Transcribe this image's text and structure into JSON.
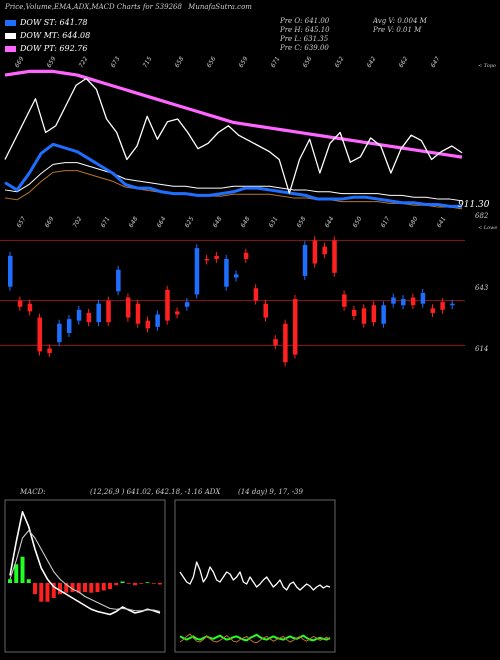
{
  "header": {
    "title": "Price,Volume,EMA,ADX,MACD Charts for 539268",
    "site": "MunafaSutra.com"
  },
  "legend": [
    {
      "label": "DOW ST: 641.78",
      "color": "#1e6fff"
    },
    {
      "label": "DOW MT: 644.08",
      "color": "#ffffff"
    },
    {
      "label": "DOW PT: 692.76",
      "color": "#ff66ff"
    }
  ],
  "ohlc": {
    "col1": [
      "Pre O: 641.00",
      "Pre H: 645.10",
      "Pre L: 631.35",
      "Pre C: 639.00"
    ],
    "col2": [
      "Avg V: 0.004  M",
      "Pre V: 0.01 M"
    ]
  },
  "volume_panel": {
    "top_values": [
      "669",
      "659",
      "722",
      "673",
      "715",
      "658",
      "656",
      "659",
      "671",
      "656",
      "652",
      "642",
      "662",
      "647"
    ],
    "bottom_values": [
      "657",
      "669",
      "702",
      "671",
      "648",
      "664",
      "625",
      "648",
      "648",
      "631",
      "658",
      "644",
      "650",
      "617",
      "680",
      "641"
    ],
    "side_label_top": "< Topo",
    "side_label_bottom": "< Lowe",
    "value_label": "911.30"
  },
  "price_panel": {
    "levels": [
      "682",
      "643",
      "614"
    ],
    "colors": {
      "up": "#1e6fff",
      "down": "#ff2020",
      "level": "#8b1a1a"
    }
  },
  "indicators": {
    "macd_label": "MACD:",
    "macd_params": "(12,26,9 ) 641.02, 642.18, -1.16 ADX",
    "adx_params": "(14 day) 9, 17, -39"
  },
  "chart_data": {
    "type": "candlestick",
    "price_levels": [
      682,
      643,
      614
    ],
    "candles": [
      {
        "o": 652,
        "c": 672
      },
      {
        "o": 643,
        "c": 639
      },
      {
        "o": 641,
        "c": 636
      },
      {
        "o": 632,
        "c": 610
      },
      {
        "o": 612,
        "c": 609
      },
      {
        "o": 616,
        "c": 628
      },
      {
        "o": 622,
        "c": 631
      },
      {
        "o": 630,
        "c": 637
      },
      {
        "o": 635,
        "c": 629
      },
      {
        "o": 629,
        "c": 641
      },
      {
        "o": 643,
        "c": 629
      },
      {
        "o": 649,
        "c": 663
      },
      {
        "o": 645,
        "c": 632
      },
      {
        "o": 641,
        "c": 628
      },
      {
        "o": 630,
        "c": 625
      },
      {
        "o": 626,
        "c": 634
      },
      {
        "o": 650,
        "c": 630
      },
      {
        "o": 636,
        "c": 634
      },
      {
        "o": 639,
        "c": 642
      },
      {
        "o": 647,
        "c": 677
      },
      {
        "o": 670,
        "c": 669
      },
      {
        "o": 672,
        "c": 670
      },
      {
        "o": 652,
        "c": 670
      },
      {
        "o": 658,
        "c": 660
      },
      {
        "o": 674,
        "c": 670
      },
      {
        "o": 651,
        "c": 643
      },
      {
        "o": 641,
        "c": 632
      },
      {
        "o": 618,
        "c": 614
      },
      {
        "o": 628,
        "c": 603
      },
      {
        "o": 644,
        "c": 608
      },
      {
        "o": 659,
        "c": 679
      },
      {
        "o": 682,
        "c": 667
      },
      {
        "o": 678,
        "c": 673
      },
      {
        "o": 682,
        "c": 661
      },
      {
        "o": 647,
        "c": 639
      },
      {
        "o": 637,
        "c": 633
      },
      {
        "o": 638,
        "c": 628
      },
      {
        "o": 640,
        "c": 629
      },
      {
        "o": 628,
        "c": 640
      },
      {
        "o": 641,
        "c": 645
      },
      {
        "o": 640,
        "c": 644
      },
      {
        "o": 645,
        "c": 640
      },
      {
        "o": 641,
        "c": 648
      },
      {
        "o": 638,
        "c": 635
      },
      {
        "o": 642,
        "c": 637
      },
      {
        "o": 640,
        "c": 641
      }
    ],
    "ema": {
      "ST": [
        655,
        651,
        660,
        671,
        676,
        674,
        672,
        668,
        664,
        660,
        654,
        652,
        652,
        650,
        649,
        649,
        648,
        648,
        649,
        650,
        652,
        652,
        651,
        650,
        649,
        648,
        646,
        646,
        646,
        647,
        647,
        646,
        645,
        644,
        644,
        643,
        643,
        642,
        642
      ],
      "MT": [
        651,
        650,
        654,
        660,
        665,
        666,
        666,
        664,
        662,
        660,
        657,
        656,
        655,
        654,
        653,
        653,
        652,
        652,
        652,
        653,
        653,
        653,
        653,
        652,
        651,
        651,
        650,
        650,
        649,
        649,
        649,
        649,
        648,
        648,
        647,
        647,
        646,
        646,
        645
      ],
      "PT": [
        714,
        715,
        716,
        716,
        716,
        715,
        714,
        712,
        710,
        708,
        706,
        704,
        702,
        700,
        698,
        696,
        694,
        692,
        690,
        688,
        687,
        686,
        685,
        684,
        683,
        682,
        681,
        680,
        679,
        678,
        677,
        676,
        675,
        674,
        673,
        672,
        671,
        670,
        669
      ]
    },
    "volume_line": [
      0.3,
      0.45,
      0.6,
      0.75,
      0.5,
      0.55,
      0.7,
      0.85,
      0.9,
      0.82,
      0.6,
      0.5,
      0.3,
      0.4,
      0.62,
      0.45,
      0.58,
      0.6,
      0.5,
      0.38,
      0.42,
      0.5,
      0.55,
      0.48,
      0.44,
      0.4,
      0.36,
      0.3,
      0.05,
      0.3,
      0.45,
      0.2,
      0.42,
      0.5,
      0.28,
      0.32,
      0.46,
      0.4,
      0.2,
      0.38,
      0.48,
      0.44,
      0.3,
      0.36,
      0.4,
      0.35
    ],
    "macd": {
      "macd": [
        0.1,
        0.55,
        0.95,
        0.75,
        0.45,
        0.2,
        0.05,
        -0.05,
        -0.1,
        -0.15,
        -0.2,
        -0.25,
        -0.3,
        -0.35,
        -0.38,
        -0.4,
        -0.42,
        -0.38,
        -0.32,
        -0.36,
        -0.4,
        -0.38,
        -0.35,
        -0.37,
        -0.4
      ],
      "signal": [
        0.05,
        0.3,
        0.6,
        0.7,
        0.6,
        0.45,
        0.3,
        0.15,
        0.05,
        -0.02,
        -0.08,
        -0.12,
        -0.18,
        -0.22,
        -0.26,
        -0.3,
        -0.34,
        -0.35,
        -0.34,
        -0.35,
        -0.37,
        -0.37,
        -0.36,
        -0.36,
        -0.38
      ],
      "hist": [
        0.05,
        0.25,
        0.35,
        0.05,
        -0.15,
        -0.25,
        -0.25,
        -0.2,
        -0.15,
        -0.13,
        -0.12,
        -0.13,
        -0.12,
        -0.13,
        -0.12,
        -0.1,
        -0.08,
        -0.03,
        0.02,
        -0.01,
        -0.03,
        -0.01,
        0.01,
        -0.01,
        -0.02
      ]
    },
    "adx": {
      "adx": [
        0.6,
        0.55,
        0.5,
        0.48,
        0.55,
        0.7,
        0.62,
        0.5,
        0.55,
        0.65,
        0.6,
        0.52,
        0.5,
        0.55,
        0.6,
        0.58,
        0.52,
        0.55,
        0.6,
        0.5,
        0.48,
        0.55,
        0.5,
        0.45,
        0.48,
        0.52,
        0.55,
        0.5,
        0.45,
        0.48,
        0.52,
        0.45,
        0.42,
        0.48,
        0.5,
        0.45,
        0.42,
        0.45,
        0.48,
        0.46,
        0.42,
        0.45,
        0.47,
        0.44,
        0.46,
        0.45
      ],
      "plus_di": [
        0.12,
        0.1,
        0.08,
        0.1,
        0.12,
        0.09,
        0.08,
        0.1,
        0.12,
        0.1,
        0.09,
        0.11,
        0.13,
        0.1,
        0.08,
        0.09,
        0.11,
        0.12,
        0.1,
        0.08,
        0.07,
        0.1,
        0.12,
        0.14,
        0.11,
        0.09,
        0.08,
        0.1,
        0.12,
        0.1,
        0.09,
        0.08,
        0.1,
        0.12,
        0.1,
        0.09,
        0.11,
        0.13,
        0.1,
        0.08,
        0.07,
        0.09,
        0.1,
        0.09,
        0.08,
        0.1
      ],
      "minus_di": [
        0.05,
        0.08,
        0.12,
        0.15,
        0.1,
        0.06,
        0.05,
        0.08,
        0.12,
        0.09,
        0.06,
        0.05,
        0.07,
        0.1,
        0.13,
        0.1,
        0.06,
        0.05,
        0.08,
        0.1,
        0.12,
        0.08,
        0.05,
        0.04,
        0.07,
        0.1,
        0.12,
        0.09,
        0.06,
        0.08,
        0.1,
        0.12,
        0.08,
        0.05,
        0.07,
        0.1,
        0.12,
        0.08,
        0.06,
        0.09,
        0.12,
        0.1,
        0.07,
        0.09,
        0.11,
        0.08
      ]
    }
  }
}
